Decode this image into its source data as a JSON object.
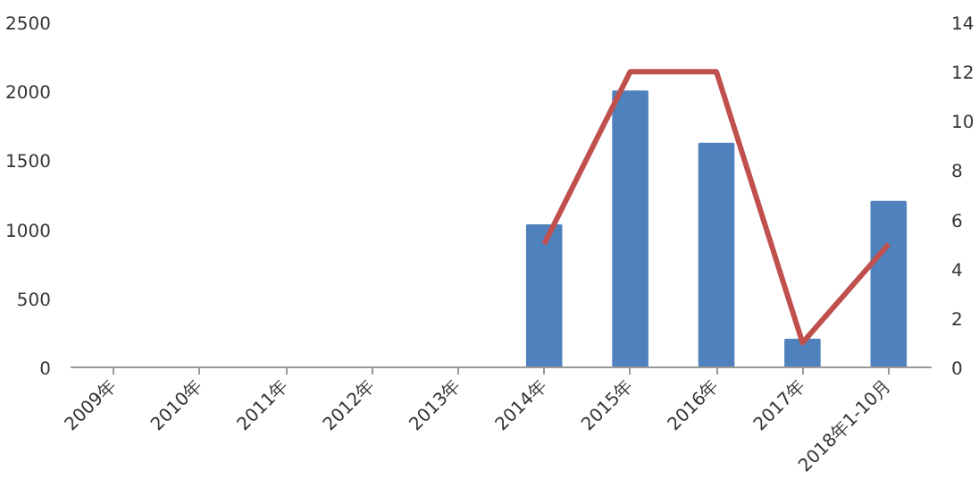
{
  "chart_data": {
    "type": "bar",
    "categories": [
      "2009年",
      "2010年",
      "2011年",
      "2012年",
      "2013年",
      "2014年",
      "2015年",
      "2016年",
      "2017年",
      "2018年1-10月"
    ],
    "series": [
      {
        "color": "#4f81bd",
        "values": [
          null,
          null,
          null,
          null,
          null,
          1030,
          2000,
          1620,
          200,
          1200
        ]
      },
      {
        "type": "line",
        "axis": "y2",
        "color": "#c0504d",
        "values": [
          null,
          null,
          null,
          null,
          null,
          5,
          12,
          12,
          1,
          5
        ]
      }
    ],
    "ylim": [
      0,
      2500
    ],
    "yticks": [
      0,
      500,
      1000,
      1500,
      2000,
      2500
    ],
    "y2lim": [
      0,
      14
    ],
    "y2ticks": [
      0,
      2,
      4,
      6,
      8,
      10,
      12,
      14
    ],
    "grid": false,
    "marker": "none",
    "line_style": "solid"
  }
}
